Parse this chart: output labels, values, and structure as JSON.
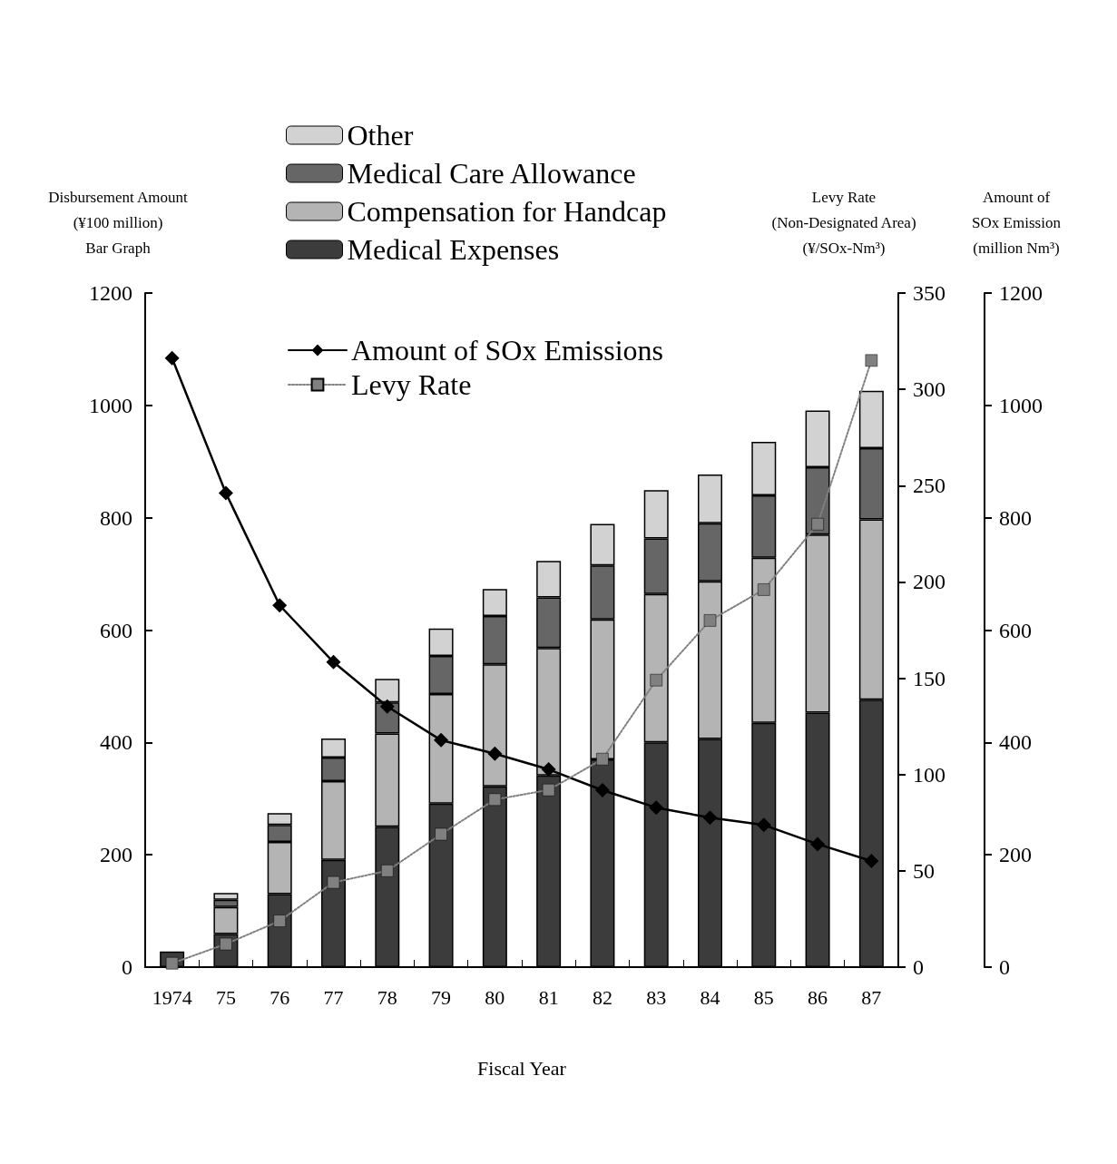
{
  "chart_data": {
    "type": "bar",
    "stacked": true,
    "xlabel": "Fiscal Year",
    "ylabel": "Disbursement Amount\n(¥100 million)\nBar Graph",
    "y2label": "Levy Rate\n(Non-Designated Area)\n(¥/SOx-Nm³)",
    "y3label": "Amount of\nSOx Emission\n(million Nm³)",
    "categories": [
      "1974",
      "75",
      "76",
      "77",
      "78",
      "79",
      "80",
      "81",
      "82",
      "83",
      "84",
      "85",
      "86",
      "87"
    ],
    "ylim": [
      0,
      1200
    ],
    "yticks": [
      0,
      200,
      400,
      600,
      800,
      1000,
      1200
    ],
    "y2lim": [
      0,
      350
    ],
    "y2ticks": [
      0,
      50,
      100,
      150,
      200,
      250,
      300,
      350
    ],
    "y3lim": [
      0,
      1200
    ],
    "y3ticks": [
      0,
      200,
      400,
      600,
      800,
      1000,
      1200
    ],
    "grid": false,
    "legend": "top left",
    "series": [
      {
        "name": "Medical Expenses",
        "color": "#3c3c3c",
        "values": [
          28,
          59,
          130,
          191,
          250,
          291,
          322,
          341,
          370,
          400,
          406,
          435,
          453,
          476
        ]
      },
      {
        "name": "Compensation for Handcap",
        "color": "#b4b4b4",
        "values": [
          0,
          48,
          93,
          140,
          166,
          195,
          217,
          227,
          249,
          264,
          281,
          294,
          317,
          321
        ]
      },
      {
        "name": "Medical Care Allowance",
        "color": "#666666",
        "values": [
          0,
          13,
          30,
          42,
          55,
          68,
          86,
          90,
          96,
          99,
          103,
          111,
          120,
          127
        ]
      },
      {
        "name": "Other",
        "color": "#d2d2d2",
        "values": [
          0,
          12,
          21,
          34,
          42,
          49,
          48,
          65,
          74,
          86,
          87,
          95,
          101,
          102
        ]
      },
      {
        "name": "Amount of SOx Emissions",
        "type": "line",
        "axis": "y3",
        "color": "#000000",
        "marker": "diamond",
        "line_style": "solid",
        "values": [
          1084,
          844,
          644,
          543,
          464,
          404,
          380,
          352,
          315,
          284,
          266,
          253,
          219,
          189
        ]
      },
      {
        "name": "Levy Rate",
        "type": "line",
        "axis": "y2",
        "color": "#808080",
        "marker": "square",
        "line_style": "dotted",
        "values": [
          2,
          12,
          24,
          44,
          50,
          69,
          87,
          92,
          108,
          149,
          180,
          196,
          230,
          315
        ]
      }
    ]
  }
}
